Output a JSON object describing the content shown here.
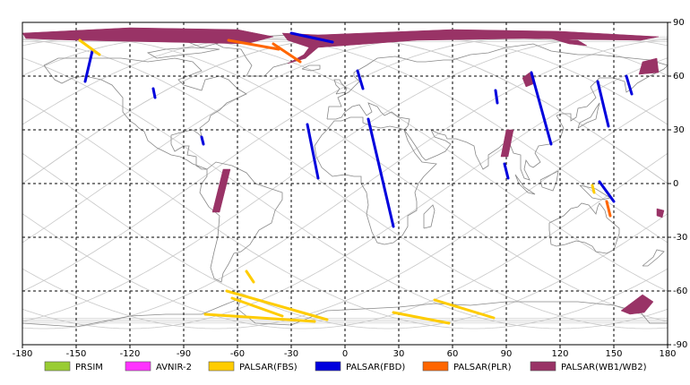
{
  "x_ticks": [
    "-180",
    "-150",
    "-120",
    "-90",
    "-60",
    "-30",
    "0",
    "30",
    "60",
    "90",
    "120",
    "150",
    "180"
  ],
  "y_ticks": [
    "90",
    "60",
    "30",
    "0",
    "-30",
    "-60",
    "-90"
  ],
  "legend": [
    {
      "label": "PRSIM",
      "color": "#99cc33"
    },
    {
      "label": "AVNIR-2",
      "color": "#ff33ff"
    },
    {
      "label": "PALSAR(FBS)",
      "color": "#ffcc00"
    },
    {
      "label": "PALSAR(FBD)",
      "color": "#0000dd"
    },
    {
      "label": "PALSAR(PLR)",
      "color": "#ff6600"
    },
    {
      "label": "PALSAR(WB1/WB2)",
      "color": "#993366"
    }
  ],
  "chart_data": {
    "type": "map",
    "xlim": [
      -180,
      180
    ],
    "ylim": [
      -90,
      90
    ],
    "grid": true,
    "legend_position": "bottom",
    "observations": [
      {
        "sensor": "PALSAR(WB1/WB2)",
        "poly": [
          [
            -180,
            84
          ],
          [
            -120,
            87
          ],
          [
            -60,
            86
          ],
          [
            -40,
            82
          ],
          [
            -55,
            78
          ],
          [
            -100,
            79
          ],
          [
            -150,
            80
          ],
          [
            -178,
            81
          ]
        ]
      },
      {
        "sensor": "PALSAR(WB1/WB2)",
        "poly": [
          [
            -35,
            84
          ],
          [
            -15,
            83
          ],
          [
            -5,
            78
          ],
          [
            -20,
            76
          ],
          [
            -32,
            80
          ]
        ]
      },
      {
        "sensor": "PALSAR(WB1/WB2)",
        "poly": [
          [
            -15,
            83
          ],
          [
            60,
            86
          ],
          [
            120,
            85
          ],
          [
            175,
            82
          ],
          [
            165,
            80
          ],
          [
            100,
            81
          ],
          [
            40,
            80
          ],
          [
            -15,
            76
          ],
          [
            -22,
            70
          ],
          [
            -32,
            67
          ],
          [
            -23,
            72
          ]
        ]
      },
      {
        "sensor": "PALSAR(WB1/WB2)",
        "poly": [
          [
            115,
            81
          ],
          [
            130,
            80
          ],
          [
            135,
            77
          ],
          [
            125,
            78
          ]
        ]
      },
      {
        "sensor": "PALSAR(WB1/WB2)",
        "poly": [
          [
            174,
            70
          ],
          [
            175,
            62
          ],
          [
            164,
            61
          ],
          [
            166,
            68
          ]
        ]
      },
      {
        "sensor": "PALSAR(WB1/WB2)",
        "poly": [
          [
            103,
            62
          ],
          [
            106,
            56
          ],
          [
            101,
            54
          ],
          [
            99,
            59
          ]
        ]
      },
      {
        "sensor": "PALSAR(WB1/WB2)",
        "poly": [
          [
            90,
            30
          ],
          [
            94,
            30
          ],
          [
            91,
            15
          ],
          [
            87,
            15
          ]
        ]
      },
      {
        "sensor": "PALSAR(WB1/WB2)",
        "poly": [
          [
            -68,
            8
          ],
          [
            -64,
            8
          ],
          [
            -70,
            -16
          ],
          [
            -74,
            -16
          ]
        ]
      },
      {
        "sensor": "PALSAR(WB1/WB2)",
        "poly": [
          [
            166,
            -62
          ],
          [
            172,
            -66
          ],
          [
            167,
            -72
          ],
          [
            159,
            -73
          ],
          [
            154,
            -71
          ]
        ]
      },
      {
        "sensor": "PALSAR(WB1/WB2)",
        "poly": [
          [
            174,
            -14
          ],
          [
            178,
            -15
          ],
          [
            177,
            -19
          ],
          [
            174,
            -18
          ]
        ]
      },
      {
        "sensor": "PALSAR(FBD)",
        "line": [
          [
            -30,
            84
          ],
          [
            -7,
            79
          ]
        ]
      },
      {
        "sensor": "PALSAR(FBD)",
        "line": [
          [
            -141,
            74
          ],
          [
            -145,
            57
          ]
        ]
      },
      {
        "sensor": "PALSAR(FBD)",
        "line": [
          [
            -107,
            53
          ],
          [
            -106,
            48
          ]
        ]
      },
      {
        "sensor": "PALSAR(FBD)",
        "line": [
          [
            -80,
            26
          ],
          [
            -79,
            22
          ]
        ]
      },
      {
        "sensor": "PALSAR(FBD)",
        "line": [
          [
            -21,
            33
          ],
          [
            -15,
            3
          ]
        ]
      },
      {
        "sensor": "PALSAR(FBD)",
        "line": [
          [
            7,
            63
          ],
          [
            10,
            53
          ]
        ]
      },
      {
        "sensor": "PALSAR(FBD)",
        "line": [
          [
            13,
            36
          ],
          [
            27,
            -24
          ]
        ]
      },
      {
        "sensor": "PALSAR(FBD)",
        "line": [
          [
            84,
            52
          ],
          [
            85,
            45
          ]
        ]
      },
      {
        "sensor": "PALSAR(FBD)",
        "line": [
          [
            104,
            62
          ],
          [
            115,
            22
          ]
        ]
      },
      {
        "sensor": "PALSAR(FBD)",
        "line": [
          [
            89,
            11
          ],
          [
            91,
            3
          ]
        ]
      },
      {
        "sensor": "PALSAR(FBD)",
        "line": [
          [
            141,
            57
          ],
          [
            147,
            32
          ]
        ]
      },
      {
        "sensor": "PALSAR(FBD)",
        "line": [
          [
            157,
            60
          ],
          [
            160,
            50
          ]
        ]
      },
      {
        "sensor": "PALSAR(FBD)",
        "line": [
          [
            142,
            1
          ],
          [
            150,
            -10
          ]
        ]
      },
      {
        "sensor": "PALSAR(FBS)",
        "line": [
          [
            -148,
            80
          ],
          [
            -137,
            72
          ]
        ]
      },
      {
        "sensor": "PALSAR(FBS)",
        "line": [
          [
            -55,
            -49
          ],
          [
            -51,
            -55
          ]
        ]
      },
      {
        "sensor": "PALSAR(FBS)",
        "line": [
          [
            -66,
            -60
          ],
          [
            -10,
            -76
          ]
        ]
      },
      {
        "sensor": "PALSAR(FBS)",
        "line": [
          [
            -63,
            -64
          ],
          [
            -35,
            -74
          ]
        ]
      },
      {
        "sensor": "PALSAR(FBS)",
        "line": [
          [
            -78,
            -73
          ],
          [
            -17,
            -77
          ]
        ]
      },
      {
        "sensor": "PALSAR(FBS)",
        "line": [
          [
            50,
            -65
          ],
          [
            83,
            -75
          ]
        ]
      },
      {
        "sensor": "PALSAR(FBS)",
        "line": [
          [
            27,
            -72
          ],
          [
            58,
            -78
          ]
        ]
      },
      {
        "sensor": "PALSAR(FBS)",
        "line": [
          [
            138,
            -1
          ],
          [
            139,
            -5
          ]
        ]
      },
      {
        "sensor": "PALSAR(PLR)",
        "line": [
          [
            -65,
            80
          ],
          [
            -37,
            75
          ]
        ]
      },
      {
        "sensor": "PALSAR(PLR)",
        "line": [
          [
            -40,
            78
          ],
          [
            -25,
            68
          ]
        ]
      },
      {
        "sensor": "PALSAR(PLR)",
        "line": [
          [
            146,
            -10
          ],
          [
            148,
            -18
          ]
        ]
      }
    ]
  }
}
